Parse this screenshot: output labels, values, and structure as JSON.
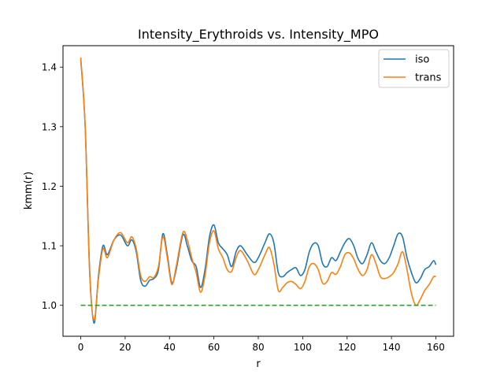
{
  "chart_data": {
    "type": "line",
    "title": "Intensity_Erythroids vs. Intensity_MPO",
    "xlabel": "r",
    "ylabel": "kmm(r)",
    "xlim": [
      -8,
      168
    ],
    "ylim": [
      0.948,
      1.436
    ],
    "xticks": [
      0,
      20,
      40,
      60,
      80,
      100,
      120,
      140,
      160
    ],
    "yticks": [
      1.0,
      1.1,
      1.2,
      1.3,
      1.4
    ],
    "ytick_labels": [
      "1.0",
      "1.1",
      "1.2",
      "1.3",
      "1.4"
    ],
    "grid": false,
    "legend_position": "upper right",
    "series": [
      {
        "name": "iso",
        "color": "#1f77b4",
        "x": [
          0,
          2,
          4,
          6,
          8,
          10,
          12,
          15,
          18,
          21,
          23,
          25,
          27,
          29,
          31,
          33,
          35,
          37,
          39,
          41,
          43,
          46,
          48,
          50,
          52,
          54,
          56,
          58,
          60,
          62,
          64,
          66,
          68,
          70,
          72,
          75,
          78,
          80,
          83,
          85,
          87,
          89,
          91,
          93,
          95,
          97,
          99,
          101,
          103,
          105,
          107,
          109,
          111,
          113,
          115,
          117,
          119,
          121,
          123,
          125,
          127,
          129,
          131,
          133,
          135,
          137,
          139,
          141,
          143,
          145,
          147,
          149,
          151,
          153,
          155,
          157,
          159,
          160
        ],
        "y": [
          1.413,
          1.3,
          1.06,
          0.97,
          1.05,
          1.1,
          1.085,
          1.11,
          1.118,
          1.1,
          1.11,
          1.09,
          1.042,
          1.032,
          1.042,
          1.045,
          1.06,
          1.12,
          1.085,
          1.038,
          1.06,
          1.118,
          1.1,
          1.075,
          1.065,
          1.03,
          1.06,
          1.115,
          1.135,
          1.105,
          1.095,
          1.085,
          1.065,
          1.09,
          1.1,
          1.085,
          1.072,
          1.08,
          1.105,
          1.12,
          1.105,
          1.055,
          1.048,
          1.055,
          1.06,
          1.063,
          1.05,
          1.06,
          1.09,
          1.104,
          1.1,
          1.07,
          1.065,
          1.08,
          1.075,
          1.09,
          1.105,
          1.112,
          1.1,
          1.078,
          1.07,
          1.085,
          1.105,
          1.09,
          1.075,
          1.07,
          1.08,
          1.1,
          1.12,
          1.115,
          1.08,
          1.055,
          1.038,
          1.045,
          1.06,
          1.065,
          1.075,
          1.068
        ]
      },
      {
        "name": "trans",
        "color": "#ff7f0e",
        "x": [
          0,
          2,
          4,
          6,
          8,
          10,
          12,
          15,
          18,
          21,
          23,
          25,
          27,
          29,
          31,
          33,
          35,
          37,
          39,
          41,
          43,
          46,
          48,
          50,
          52,
          54,
          56,
          58,
          60,
          62,
          64,
          66,
          68,
          70,
          72,
          75,
          78,
          80,
          83,
          85,
          87,
          89,
          91,
          93,
          95,
          97,
          99,
          101,
          103,
          105,
          107,
          109,
          111,
          113,
          115,
          117,
          119,
          121,
          123,
          125,
          127,
          129,
          131,
          133,
          135,
          137,
          139,
          141,
          143,
          145,
          147,
          149,
          151,
          153,
          155,
          157,
          159,
          160
        ],
        "y": [
          1.416,
          1.3,
          1.055,
          0.975,
          1.045,
          1.095,
          1.08,
          1.11,
          1.122,
          1.105,
          1.115,
          1.095,
          1.05,
          1.04,
          1.048,
          1.047,
          1.065,
          1.115,
          1.08,
          1.035,
          1.065,
          1.122,
          1.11,
          1.08,
          1.055,
          1.022,
          1.05,
          1.105,
          1.125,
          1.095,
          1.08,
          1.06,
          1.057,
          1.08,
          1.092,
          1.075,
          1.052,
          1.06,
          1.085,
          1.097,
          1.07,
          1.025,
          1.03,
          1.038,
          1.04,
          1.035,
          1.028,
          1.04,
          1.065,
          1.07,
          1.06,
          1.037,
          1.04,
          1.055,
          1.052,
          1.065,
          1.085,
          1.088,
          1.078,
          1.06,
          1.05,
          1.06,
          1.085,
          1.07,
          1.048,
          1.045,
          1.048,
          1.055,
          1.07,
          1.09,
          1.06,
          1.02,
          1.0,
          1.01,
          1.025,
          1.035,
          1.048,
          1.048
        ]
      },
      {
        "name": "",
        "color": "#2ca02c",
        "dashed": true,
        "x": [
          0,
          160
        ],
        "y": [
          1.0,
          1.0
        ]
      }
    ]
  }
}
